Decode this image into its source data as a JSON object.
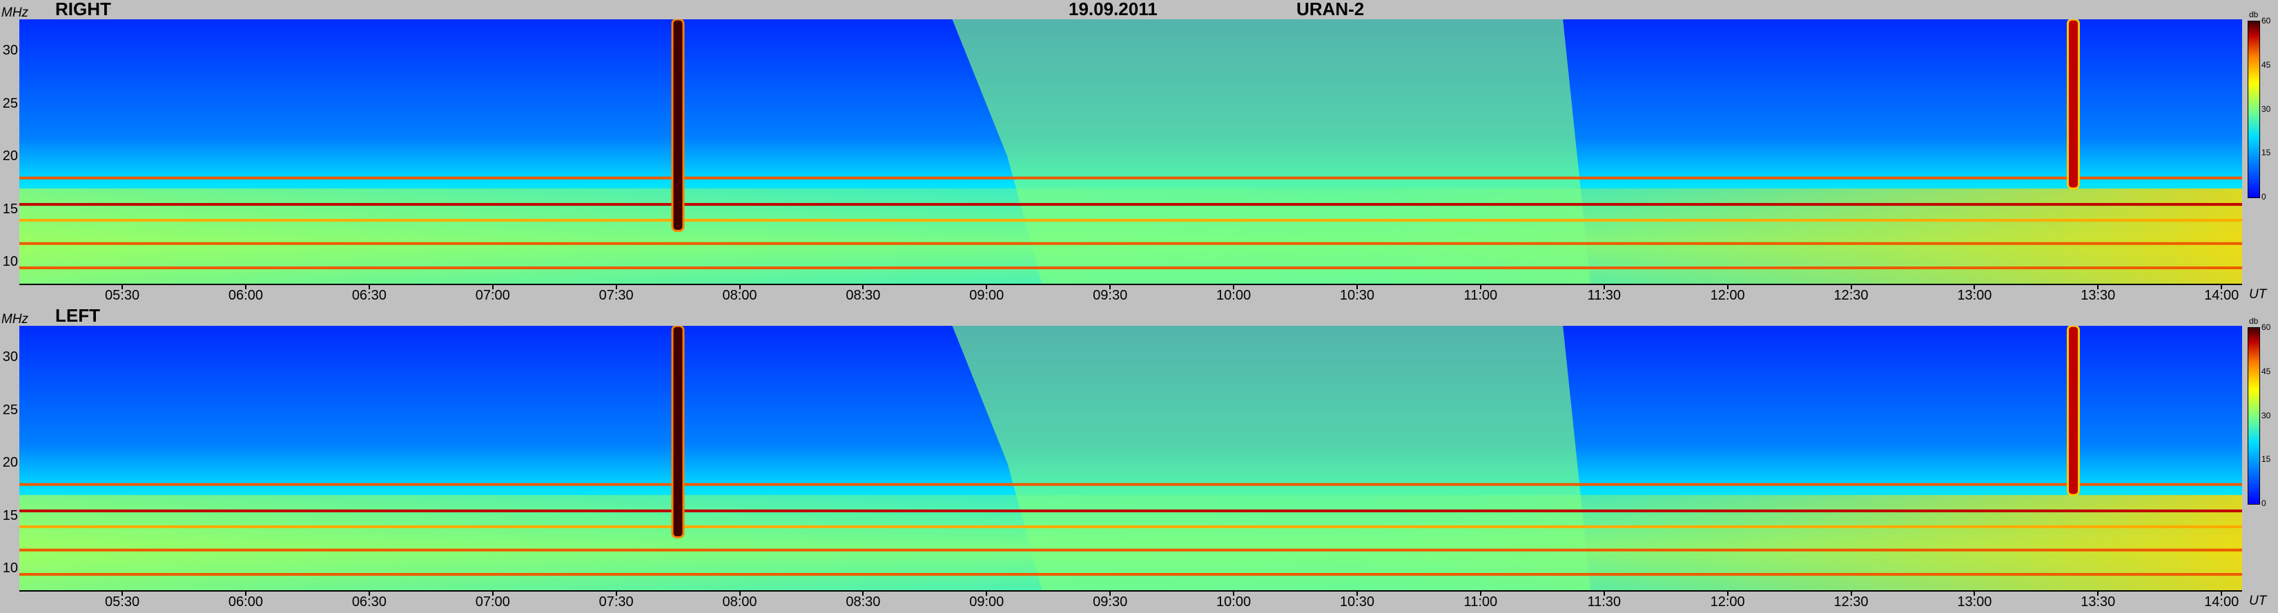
{
  "header": {
    "date": "19.09.2011",
    "instrument": "URAN-2"
  },
  "y_unit": "MHz",
  "x_unit": "UT",
  "colorbar": {
    "title": "db",
    "ticks": [
      "60",
      "45",
      "30",
      "15",
      "0"
    ]
  },
  "panels": [
    {
      "label": "RIGHT"
    },
    {
      "label": "LEFT"
    }
  ],
  "colors": {
    "background": "#c0c0c0",
    "low": "#0000ff",
    "mid": "#00e0ff",
    "high": "#ffff00",
    "peak": "#c00000"
  },
  "chart_data": [
    {
      "type": "heatmap",
      "panel": "RIGHT",
      "xlabel": "UT",
      "ylabel": "MHz",
      "x_ticks": [
        "05:30",
        "06:00",
        "06:30",
        "07:00",
        "07:30",
        "08:00",
        "08:30",
        "09:00",
        "09:30",
        "10:00",
        "10:30",
        "11:00",
        "11:30",
        "12:00",
        "12:30",
        "13:00",
        "13:30",
        "14:00"
      ],
      "y_ticks": [
        "30",
        "25",
        "20",
        "15",
        "10"
      ],
      "ylim": [
        8,
        33
      ],
      "xlim": [
        "05:05",
        "14:05"
      ],
      "colorbar_range_db": [
        0,
        60
      ],
      "features": [
        {
          "kind": "burst_vertical",
          "time": "07:45",
          "freq_range": [
            13,
            33
          ],
          "intensity_db": 60
        },
        {
          "kind": "burst_vertical",
          "time": "13:24",
          "freq_range": [
            17,
            33
          ],
          "intensity_db": 55
        },
        {
          "kind": "broadband_emission",
          "time_range": [
            "08:55",
            "11:20"
          ],
          "freq_range": [
            8,
            33
          ],
          "intensity_db": 30
        },
        {
          "kind": "interference_band",
          "freq": 18,
          "intensity_db": 50
        },
        {
          "kind": "interference_band",
          "freq": 15.5,
          "intensity_db": 55
        },
        {
          "kind": "interference_band",
          "freq": 14,
          "intensity_db": 45
        },
        {
          "kind": "interference_band",
          "freq": 11.8,
          "intensity_db": 50
        },
        {
          "kind": "interference_band",
          "freq": 9.5,
          "intensity_db": 50
        }
      ]
    },
    {
      "type": "heatmap",
      "panel": "LEFT",
      "xlabel": "UT",
      "ylabel": "MHz",
      "x_ticks": [
        "05:30",
        "06:00",
        "06:30",
        "07:00",
        "07:30",
        "08:00",
        "08:30",
        "09:00",
        "09:30",
        "10:00",
        "10:30",
        "11:00",
        "11:30",
        "12:00",
        "12:30",
        "13:00",
        "13:30",
        "14:00"
      ],
      "y_ticks": [
        "30",
        "25",
        "20",
        "15",
        "10"
      ],
      "ylim": [
        8,
        33
      ],
      "xlim": [
        "05:05",
        "14:05"
      ],
      "colorbar_range_db": [
        0,
        60
      ],
      "features": [
        {
          "kind": "burst_vertical",
          "time": "07:45",
          "freq_range": [
            13,
            33
          ],
          "intensity_db": 60
        },
        {
          "kind": "burst_vertical",
          "time": "13:24",
          "freq_range": [
            17,
            33
          ],
          "intensity_db": 55
        },
        {
          "kind": "broadband_emission",
          "time_range": [
            "08:55",
            "11:20"
          ],
          "freq_range": [
            8,
            33
          ],
          "intensity_db": 30
        },
        {
          "kind": "interference_band",
          "freq": 18,
          "intensity_db": 50
        },
        {
          "kind": "interference_band",
          "freq": 15.5,
          "intensity_db": 55
        },
        {
          "kind": "interference_band",
          "freq": 14,
          "intensity_db": 45
        },
        {
          "kind": "interference_band",
          "freq": 11.8,
          "intensity_db": 50
        },
        {
          "kind": "interference_band",
          "freq": 9.5,
          "intensity_db": 50
        }
      ]
    }
  ]
}
